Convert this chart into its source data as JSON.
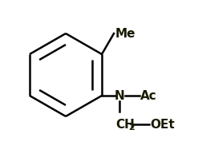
{
  "bg_color": "#ffffff",
  "line_color": "#000000",
  "text_color": "#1a1a00",
  "bond_lw": 1.8,
  "me_label": "Me",
  "n_label": "N",
  "ac_label": "Ac",
  "oet_label": "OEt",
  "font_size": 11,
  "font_size_sub": 8,
  "figsize": [
    2.53,
    1.97
  ],
  "dpi": 100
}
